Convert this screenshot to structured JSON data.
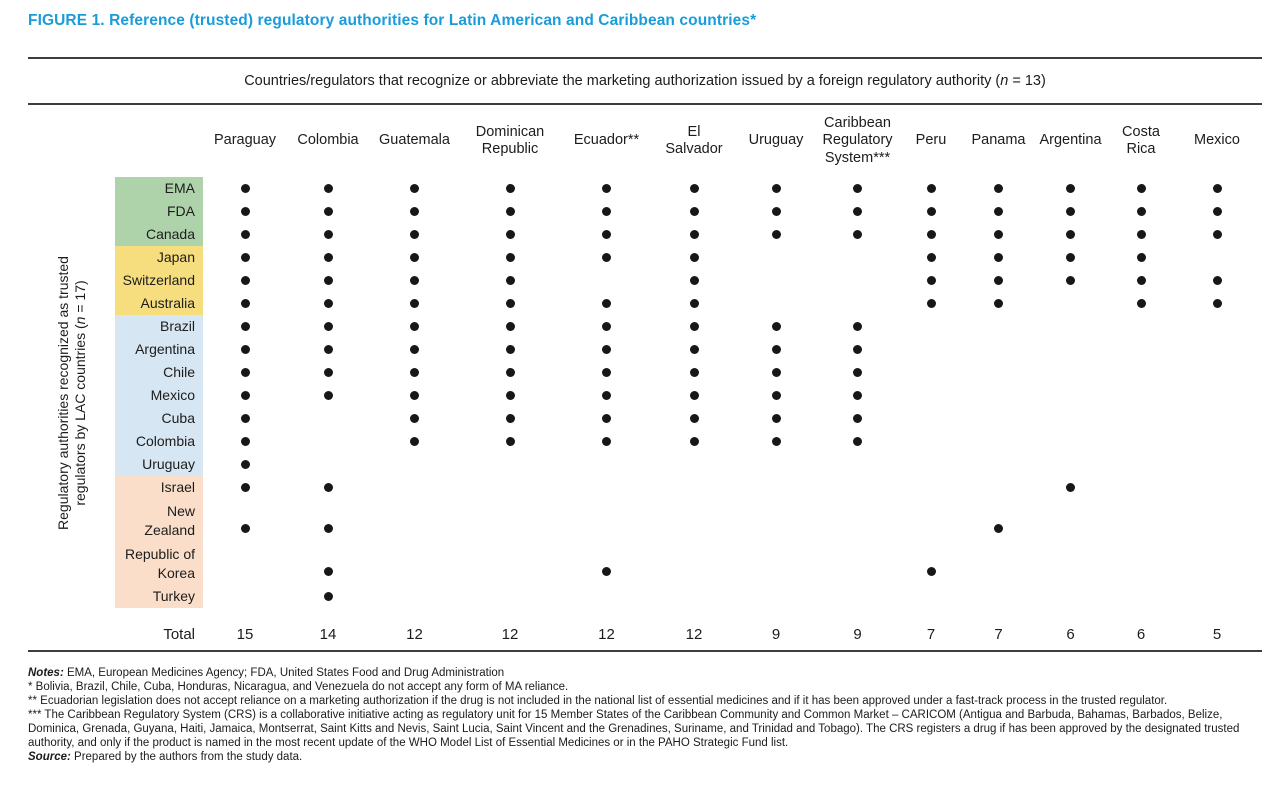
{
  "title": "FIGURE 1. Reference (trusted) regulatory authorities for Latin American and Caribbean countries*",
  "span_header": {
    "before": "Countries/regulators that recognize or abbreviate the marketing authorization issued by a foreign regulatory authority (",
    "n": "n",
    "after": " = 13)"
  },
  "y_axis_label": {
    "line1": "Regulatory authorities recognized as trusted",
    "line2_before": "regulators by LAC countries (",
    "n": "n",
    "line2_after": " = 17)"
  },
  "chart_data": {
    "type": "table",
    "title": "Reference (trusted) regulatory authorities for Latin American and Caribbean countries",
    "columns": [
      "Paraguay",
      "Colombia",
      "Guatemala",
      "Dominican Republic",
      "Ecuador**",
      "El Salvador",
      "Uruguay",
      "Caribbean Regulatory System***",
      "Peru",
      "Panama",
      "Argentina",
      "Costa Rica",
      "Mexico"
    ],
    "row_groups": [
      {
        "name": "ema-fda-canada",
        "color": "#aed3aa"
      },
      {
        "name": "japan-switzerland-australia",
        "color": "#f6de7e"
      },
      {
        "name": "latin-american-regulators",
        "color": "#d6e6f3"
      },
      {
        "name": "other-regulators",
        "color": "#fadec9"
      }
    ],
    "rows": [
      {
        "label": "EMA",
        "group": 0,
        "dots": [
          1,
          1,
          1,
          1,
          1,
          1,
          1,
          1,
          1,
          1,
          1,
          1,
          1
        ]
      },
      {
        "label": "FDA",
        "group": 0,
        "dots": [
          1,
          1,
          1,
          1,
          1,
          1,
          1,
          1,
          1,
          1,
          1,
          1,
          1
        ]
      },
      {
        "label": "Canada",
        "group": 0,
        "dots": [
          1,
          1,
          1,
          1,
          1,
          1,
          1,
          1,
          1,
          1,
          1,
          1,
          1
        ]
      },
      {
        "label": "Japan",
        "group": 1,
        "dots": [
          1,
          1,
          1,
          1,
          1,
          1,
          0,
          0,
          1,
          1,
          1,
          1,
          0
        ]
      },
      {
        "label": "Switzerland",
        "group": 1,
        "dots": [
          1,
          1,
          1,
          1,
          0,
          1,
          0,
          0,
          1,
          1,
          1,
          1,
          1
        ]
      },
      {
        "label": "Australia",
        "group": 1,
        "dots": [
          1,
          1,
          1,
          1,
          1,
          1,
          0,
          0,
          1,
          1,
          0,
          1,
          1
        ]
      },
      {
        "label": "Brazil",
        "group": 2,
        "dots": [
          1,
          1,
          1,
          1,
          1,
          1,
          1,
          1,
          0,
          0,
          0,
          0,
          0
        ]
      },
      {
        "label": "Argentina",
        "group": 2,
        "dots": [
          1,
          1,
          1,
          1,
          1,
          1,
          1,
          1,
          0,
          0,
          0,
          0,
          0
        ]
      },
      {
        "label": "Chile",
        "group": 2,
        "dots": [
          1,
          1,
          1,
          1,
          1,
          1,
          1,
          1,
          0,
          0,
          0,
          0,
          0
        ]
      },
      {
        "label": "Mexico",
        "group": 2,
        "dots": [
          1,
          1,
          1,
          1,
          1,
          1,
          1,
          1,
          0,
          0,
          0,
          0,
          0
        ]
      },
      {
        "label": "Cuba",
        "group": 2,
        "dots": [
          1,
          0,
          1,
          1,
          1,
          1,
          1,
          1,
          0,
          0,
          0,
          0,
          0
        ]
      },
      {
        "label": "Colombia",
        "group": 2,
        "dots": [
          1,
          0,
          1,
          1,
          1,
          1,
          1,
          1,
          0,
          0,
          0,
          0,
          0
        ]
      },
      {
        "label": "Uruguay",
        "group": 2,
        "dots": [
          1,
          0,
          0,
          0,
          0,
          0,
          0,
          0,
          0,
          0,
          0,
          0,
          0
        ]
      },
      {
        "label": "Israel",
        "group": 3,
        "dots": [
          1,
          1,
          0,
          0,
          0,
          0,
          0,
          0,
          0,
          0,
          1,
          0,
          0
        ]
      },
      {
        "label": "New Zealand",
        "group": 3,
        "dots": [
          1,
          1,
          0,
          0,
          0,
          0,
          0,
          0,
          0,
          1,
          0,
          0,
          0
        ]
      },
      {
        "label": "Republic of Korea",
        "group": 3,
        "dots": [
          0,
          1,
          0,
          0,
          1,
          0,
          0,
          0,
          1,
          0,
          0,
          0,
          0
        ]
      },
      {
        "label": "Turkey",
        "group": 3,
        "dots": [
          0,
          1,
          0,
          0,
          0,
          0,
          0,
          0,
          0,
          0,
          0,
          0,
          0
        ]
      }
    ],
    "total_label": "Total",
    "totals": [
      15,
      14,
      12,
      12,
      12,
      12,
      9,
      9,
      7,
      7,
      6,
      6,
      5
    ]
  },
  "notes": [
    {
      "prefix": "Notes:",
      "text": " EMA, European Medicines Agency; FDA, United States Food and Drug Administration"
    },
    {
      "prefix": "",
      "text": "* Bolivia, Brazil, Chile, Cuba, Honduras, Nicaragua, and Venezuela do not accept any form of MA reliance."
    },
    {
      "prefix": "",
      "text": "** Ecuadorian legislation does not accept reliance on a marketing authorization if the drug is not included in the national list of essential medicines and if it has been approved under a fast-track process in the trusted regulator."
    },
    {
      "prefix": "",
      "text": "*** The Caribbean Regulatory System (CRS) is a collaborative initiative acting as regulatory unit for 15 Member States of the Caribbean Community and Common Market – CARICOM (Antigua and Barbuda, Bahamas, Barbados, Belize, Dominica, Grenada, Guyana, Haiti, Jamaica, Montserrat, Saint Kitts and Nevis, Saint Lucia, Saint Vincent and the Grenadines, Suriname, and Trinidad and Tobago). The CRS registers a drug if has been approved by the designated trusted authority, and only if the product is named in the most recent update of the WHO Model List of Essential Medicines or in the PAHO Strategic Fund list."
    },
    {
      "prefix": "Source:",
      "text": " Prepared by the authors from the study data."
    }
  ]
}
